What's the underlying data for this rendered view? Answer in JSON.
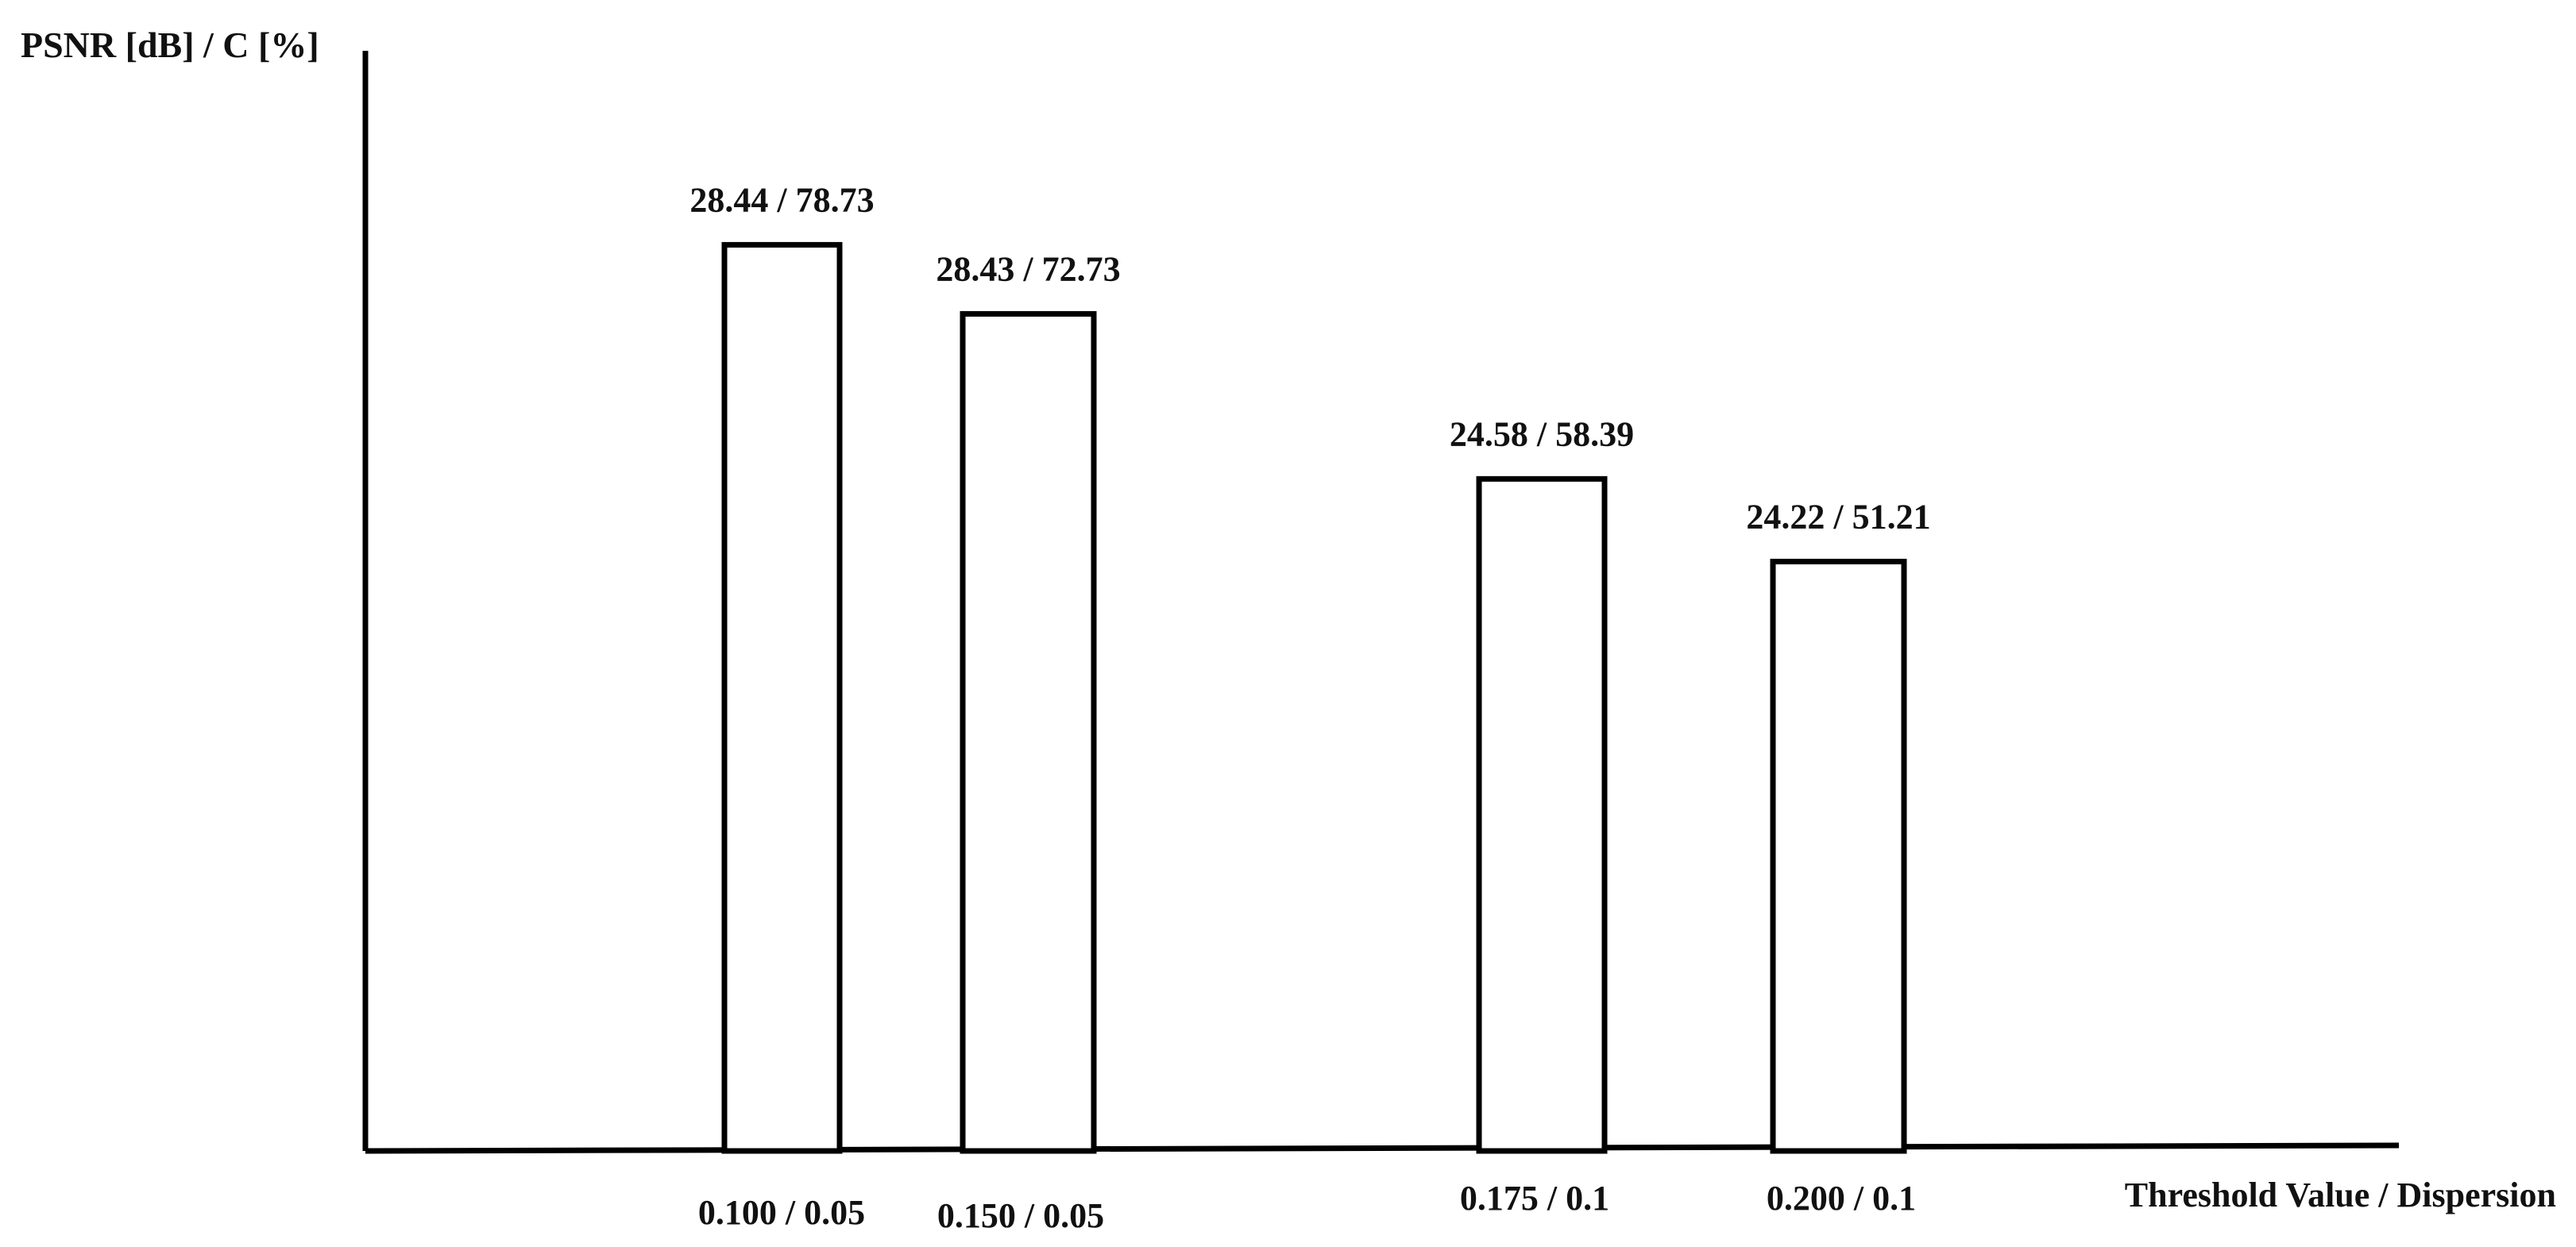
{
  "colors": {
    "background": "#ffffff",
    "ink": "#000000",
    "bar_fill": "#ffffff"
  },
  "chart_data": {
    "type": "bar",
    "title": "",
    "ylabel": "PSNR [dB] / C [%]",
    "xlabel": "Threshold Value / Dispersion",
    "categories": [
      "0.100 / 0.05",
      "0.150 / 0.05",
      "0.175 / 0.1",
      "0.200 / 0.1"
    ],
    "series": [
      {
        "values": [
          78.73,
          72.73,
          58.39,
          51.21
        ]
      }
    ],
    "data_labels": [
      "28.44 / 78.73",
      "28.43 / 72.73",
      "24.58 / 58.39",
      "24.22 / 51.21"
    ],
    "ylim": [
      0,
      100
    ],
    "grid": false,
    "legend": "none"
  }
}
